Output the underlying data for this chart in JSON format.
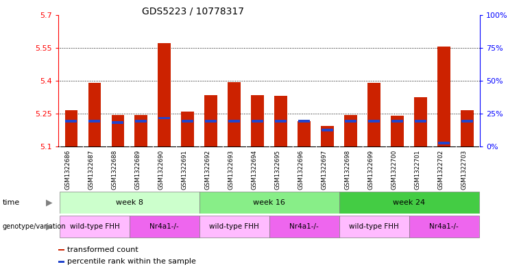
{
  "title": "GDS5223 / 10778317",
  "samples": [
    "GSM1322686",
    "GSM1322687",
    "GSM1322688",
    "GSM1322689",
    "GSM1322690",
    "GSM1322691",
    "GSM1322692",
    "GSM1322693",
    "GSM1322694",
    "GSM1322695",
    "GSM1322696",
    "GSM1322697",
    "GSM1322698",
    "GSM1322699",
    "GSM1322700",
    "GSM1322701",
    "GSM1322702",
    "GSM1322703"
  ],
  "red_values": [
    5.265,
    5.39,
    5.245,
    5.245,
    5.57,
    5.26,
    5.335,
    5.395,
    5.335,
    5.33,
    5.215,
    5.195,
    5.245,
    5.39,
    5.24,
    5.325,
    5.555,
    5.265
  ],
  "blue_values": [
    5.215,
    5.215,
    5.21,
    5.215,
    5.23,
    5.215,
    5.215,
    5.215,
    5.215,
    5.215,
    5.215,
    5.175,
    5.215,
    5.215,
    5.215,
    5.215,
    5.115,
    5.215
  ],
  "y_min": 5.1,
  "y_max": 5.7,
  "y_ticks_left": [
    5.1,
    5.25,
    5.4,
    5.55,
    5.7
  ],
  "y_ticks_right_pct": [
    0,
    25,
    50,
    75,
    100
  ],
  "grid_lines": [
    5.25,
    5.4,
    5.55
  ],
  "time_groups": [
    {
      "label": "week 8",
      "start": 0,
      "end": 6,
      "color": "#ccffcc"
    },
    {
      "label": "week 16",
      "start": 6,
      "end": 12,
      "color": "#88ee88"
    },
    {
      "label": "week 24",
      "start": 12,
      "end": 18,
      "color": "#44cc44"
    }
  ],
  "genotype_groups": [
    {
      "label": "wild-type FHH",
      "start": 0,
      "end": 3,
      "color": "#ffbbff"
    },
    {
      "label": "Nr4a1-/-",
      "start": 3,
      "end": 6,
      "color": "#ee66ee"
    },
    {
      "label": "wild-type FHH",
      "start": 6,
      "end": 9,
      "color": "#ffbbff"
    },
    {
      "label": "Nr4a1-/-",
      "start": 9,
      "end": 12,
      "color": "#ee66ee"
    },
    {
      "label": "wild-type FHH",
      "start": 12,
      "end": 15,
      "color": "#ffbbff"
    },
    {
      "label": "Nr4a1-/-",
      "start": 15,
      "end": 18,
      "color": "#ee66ee"
    }
  ],
  "bar_color": "#cc2200",
  "blue_color": "#2244cc",
  "bar_width": 0.55,
  "blue_bar_height": 0.012,
  "sample_bg": "#dddddd",
  "legend_items": [
    {
      "label": "transformed count",
      "color": "#cc2200"
    },
    {
      "label": "percentile rank within the sample",
      "color": "#2244cc"
    }
  ]
}
